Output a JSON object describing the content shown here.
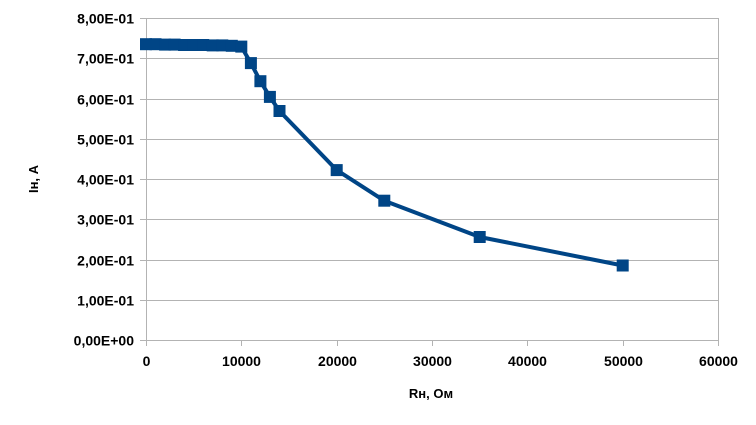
{
  "chart_data": {
    "type": "line",
    "xlabel": "Rн, Ом",
    "ylabel": "Iн, A",
    "xlim": [
      0,
      60000
    ],
    "ylim": [
      0,
      0.8
    ],
    "x_ticks": [
      0,
      10000,
      20000,
      30000,
      40000,
      50000,
      60000
    ],
    "x_tick_labels": [
      "0",
      "10000",
      "20000",
      "30000",
      "40000",
      "50000",
      "60000"
    ],
    "y_ticks": [
      0,
      0.1,
      0.2,
      0.3,
      0.4,
      0.5,
      0.6,
      0.7,
      0.8
    ],
    "y_tick_labels": [
      "0,00E+00",
      "1,00E-01",
      "2,00E-01",
      "3,00E-01",
      "4,00E-01",
      "5,00E-01",
      "6,00E-01",
      "7,00E-01",
      "8,00E-01"
    ],
    "grid": "horizontal",
    "legend": "none",
    "series": [
      {
        "color": "#004586",
        "marker": "square",
        "x": [
          0,
          1000,
          2000,
          3000,
          4000,
          5000,
          6000,
          7000,
          8000,
          9000,
          10000,
          11000,
          12000,
          13000,
          14000,
          20000,
          25000,
          35000,
          50000
        ],
        "y": [
          0.735,
          0.735,
          0.734,
          0.734,
          0.733,
          0.733,
          0.733,
          0.732,
          0.732,
          0.731,
          0.729,
          0.688,
          0.643,
          0.604,
          0.569,
          0.422,
          0.346,
          0.256,
          0.185
        ]
      }
    ]
  }
}
